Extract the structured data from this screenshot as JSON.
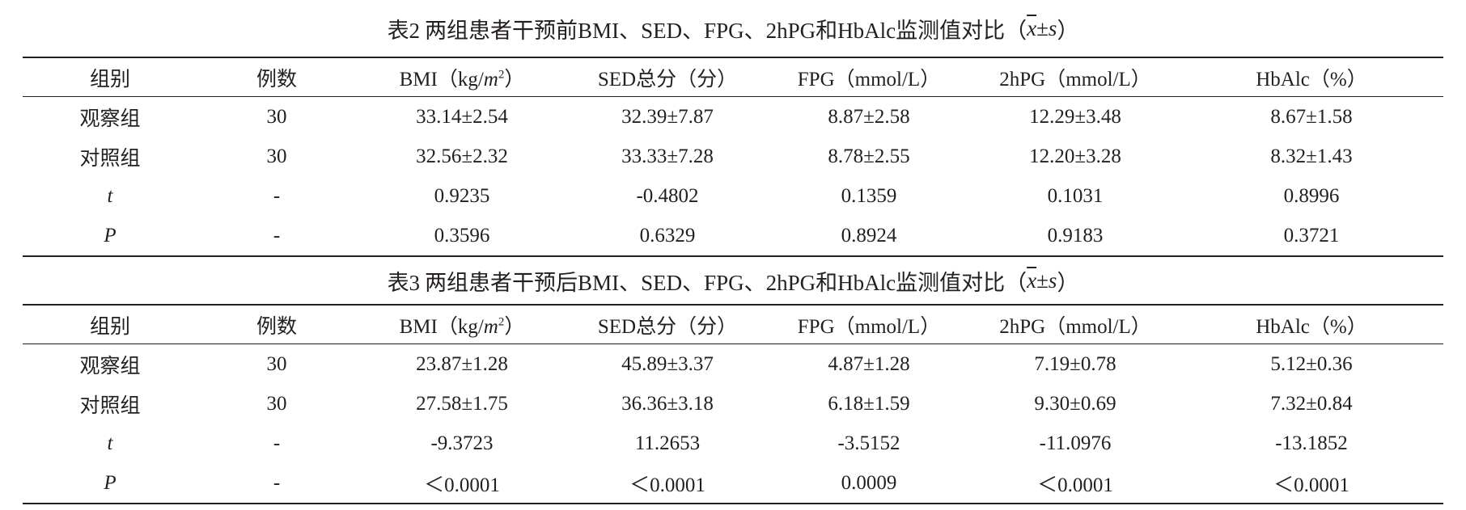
{
  "tables": [
    {
      "title_label": "表2",
      "title_text": "两组患者干预前BMI、SED、FPG、2hPG和HbAlc监测值对比（",
      "title_xbar": "x",
      "title_pm": "±",
      "title_s": "s",
      "title_close": "）",
      "headers": {
        "group": "组别",
        "count": "例数",
        "bmi_prefix": "BMI（kg/",
        "bmi_unit_m": "m",
        "bmi_unit_exp": "2",
        "bmi_suffix": "）",
        "sed": "SED总分（分）",
        "fpg": "FPG（mmol/L）",
        "hpg": "2hPG（mmol/L）",
        "hba1c": "HbAlc（%）"
      },
      "rows": [
        {
          "group": "观察组",
          "count": "30",
          "bmi": "33.14±2.54",
          "sed": "32.39±7.87",
          "fpg": "8.87±2.58",
          "hpg": "12.29±3.48",
          "hba1c": "8.67±1.58"
        },
        {
          "group": "对照组",
          "count": "30",
          "bmi": "32.56±2.32",
          "sed": "33.33±7.28",
          "fpg": "8.78±2.55",
          "hpg": "12.20±3.28",
          "hba1c": "8.32±1.43"
        },
        {
          "group": "t",
          "count": "-",
          "bmi": "0.9235",
          "sed": "-0.4802",
          "fpg": "0.1359",
          "hpg": "0.1031",
          "hba1c": "0.8996"
        },
        {
          "group": "P",
          "count": "-",
          "bmi": "0.3596",
          "sed": "0.6329",
          "fpg": "0.8924",
          "hpg": "0.9183",
          "hba1c": "0.3721"
        }
      ]
    },
    {
      "title_label": "表3",
      "title_text": "两组患者干预后BMI、SED、FPG、2hPG和HbAlc监测值对比（",
      "title_xbar": "x",
      "title_pm": "±",
      "title_s": "s",
      "title_close": "）",
      "headers": {
        "group": "组别",
        "count": "例数",
        "bmi_prefix": "BMI（kg/",
        "bmi_unit_m": "m",
        "bmi_unit_exp": "2",
        "bmi_suffix": "）",
        "sed": "SED总分（分）",
        "fpg": "FPG（mmol/L）",
        "hpg": "2hPG（mmol/L）",
        "hba1c": "HbAlc（%）"
      },
      "rows": [
        {
          "group": "观察组",
          "count": "30",
          "bmi": "23.87±1.28",
          "sed": "45.89±3.37",
          "fpg": "4.87±1.28",
          "hpg": "7.19±0.78",
          "hba1c": "5.12±0.36"
        },
        {
          "group": "对照组",
          "count": "30",
          "bmi": "27.58±1.75",
          "sed": "36.36±3.18",
          "fpg": "6.18±1.59",
          "hpg": "9.30±0.69",
          "hba1c": "7.32±0.84"
        },
        {
          "group": "t",
          "count": "-",
          "bmi": "-9.3723",
          "sed": "11.2653",
          "fpg": "-3.5152",
          "hpg": "-11.0976",
          "hba1c": "-13.1852"
        },
        {
          "group": "P",
          "count": "-",
          "bmi": "＜0.0001",
          "sed": "＜0.0001",
          "fpg": "0.0009",
          "hpg": "＜0.0001",
          "hba1c": "＜0.0001"
        }
      ]
    }
  ]
}
